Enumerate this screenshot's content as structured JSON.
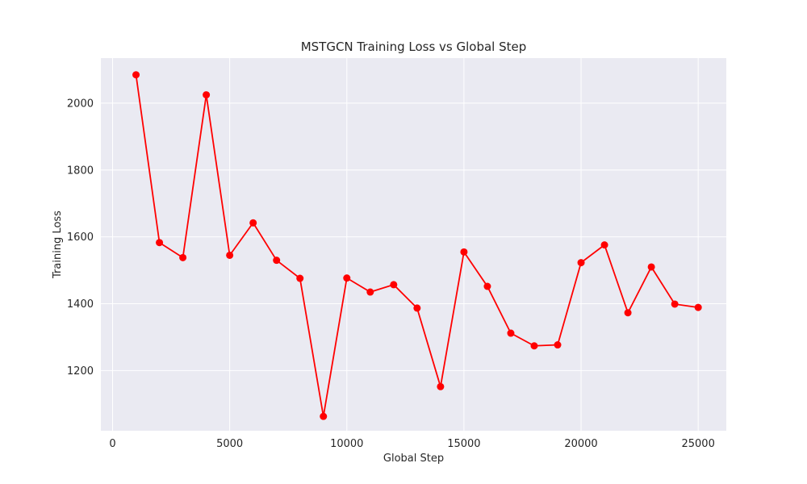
{
  "chart_data": {
    "type": "line",
    "title": "MSTGCN Training Loss vs Global Step",
    "xlabel": "Global Step",
    "ylabel": "Training Loss",
    "xlim": [
      -500,
      26200
    ],
    "ylim": [
      1020,
      2135
    ],
    "xticks": [
      0,
      5000,
      10000,
      15000,
      20000,
      25000
    ],
    "yticks": [
      1200,
      1400,
      1600,
      1800,
      2000
    ],
    "grid": true,
    "legend": "none",
    "series": [
      {
        "color": "#ff0000",
        "marker": "circle",
        "x": [
          1000,
          2000,
          3000,
          4000,
          5000,
          6000,
          7000,
          8000,
          9000,
          10000,
          11000,
          12000,
          13000,
          14000,
          15000,
          16000,
          17000,
          18000,
          19000,
          20000,
          21000,
          22000,
          23000,
          24000,
          25000
        ],
        "y": [
          2085,
          1583,
          1538,
          2025,
          1545,
          1642,
          1530,
          1476,
          1063,
          1477,
          1435,
          1457,
          1387,
          1152,
          1555,
          1452,
          1312,
          1274,
          1277,
          1523,
          1576,
          1373,
          1510,
          1399,
          1389
        ]
      }
    ]
  }
}
